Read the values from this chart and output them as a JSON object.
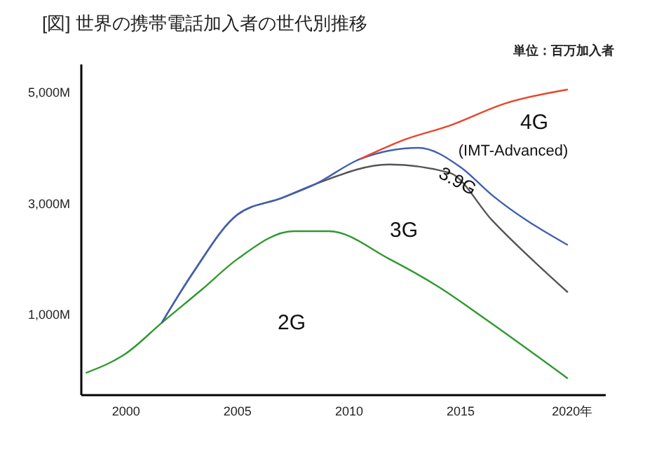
{
  "chart_data": {
    "type": "line",
    "title": "[図] 世界の携帯電話加入者の世代別推移",
    "subtitle": "単位：百万加入者",
    "xlim": [
      1998,
      2021.5
    ],
    "xticks": [
      2000,
      2005,
      2010,
      2015,
      {
        "value": 2020,
        "label": "2020年"
      }
    ],
    "ylim": [
      -450,
      5500
    ],
    "yticks": [
      {
        "value": 1000,
        "label": "1,000M"
      },
      {
        "value": 3000,
        "label": "3,000M"
      },
      {
        "value": 5000,
        "label": "5,000M"
      }
    ],
    "grid": false,
    "marker": "none",
    "line_style": "solid",
    "series": [
      {
        "color": "#2e9a2e",
        "x": [
          1998.2,
          2000,
          2001.6,
          2003.4,
          2005,
          2007.5,
          2009.1,
          2011.8,
          2014,
          2016,
          2019.8
        ],
        "values": [
          -50,
          300,
          850,
          1450,
          2000,
          2500,
          2500,
          2000,
          1500,
          950,
          -150
        ]
      },
      {
        "color": "#555555",
        "x": [
          2001.6,
          2003,
          2005,
          2007,
          2008.5,
          2011.8,
          2014.5,
          2016.4,
          2019.8
        ],
        "values": [
          850,
          1750,
          2800,
          3100,
          3350,
          3700,
          3550,
          2700,
          1400
        ]
      },
      {
        "color": "#4060b0",
        "x": [
          2001.6,
          2003,
          2005,
          2007,
          2008.5,
          2010.5,
          2013.1,
          2015,
          2016.4,
          2019.8
        ],
        "values": [
          850,
          1750,
          2800,
          3100,
          3350,
          3800,
          4000,
          3650,
          3150,
          2250
        ]
      },
      {
        "color": "#e8452c",
        "x": [
          2010.5,
          2012.5,
          2014.5,
          2017,
          2019.8
        ],
        "values": [
          3800,
          4150,
          4400,
          4800,
          5050
        ]
      }
    ],
    "annotations": [
      "4G",
      "(IMT-Advanced)",
      "3.9G",
      "3G",
      "2G"
    ]
  }
}
